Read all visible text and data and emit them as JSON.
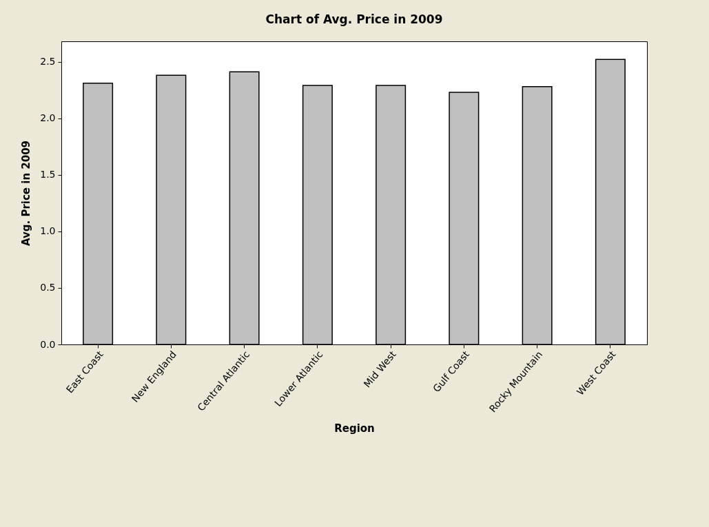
{
  "chart_data": {
    "type": "bar",
    "title": "Chart of Avg. Price in 2009",
    "xlabel": "Region",
    "ylabel": "Avg. Price in 2009",
    "categories": [
      "East Coast",
      "New England",
      "Central Atlantic",
      "Lower Atlantic",
      "Mid West",
      "Gulf Coast",
      "Rocky Mountain",
      "West Coast"
    ],
    "values": [
      2.31,
      2.38,
      2.41,
      2.29,
      2.29,
      2.23,
      2.28,
      2.52
    ],
    "color": "#c0c0c0",
    "ylim": [
      0,
      2.68
    ],
    "yticks": [
      {
        "value": 0,
        "label": "0.0"
      },
      {
        "value": 0.5,
        "label": "0.5"
      },
      {
        "value": 1,
        "label": "1.0"
      },
      {
        "value": 1.5,
        "label": "1.5"
      },
      {
        "value": 2,
        "label": "2.0"
      },
      {
        "value": 2.5,
        "label": "2.5"
      }
    ],
    "grid": false
  }
}
